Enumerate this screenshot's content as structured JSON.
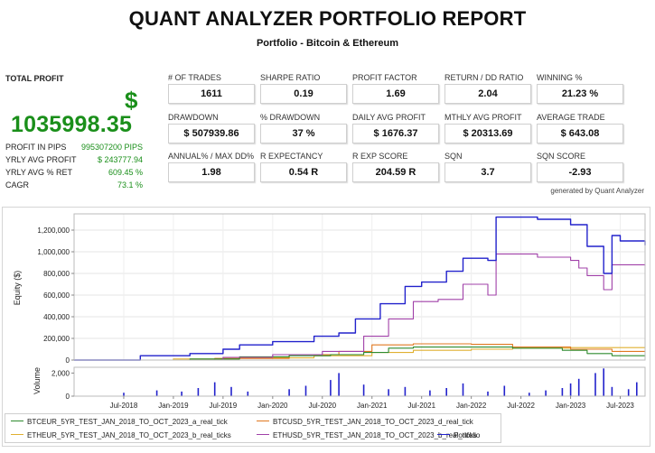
{
  "report": {
    "title": "QUANT ANALYZER PORTFOLIO REPORT",
    "subtitle": "Portfolio - Bitcoin & Ethereum",
    "generated_by": "generated by Quant Analyzer"
  },
  "total_profit": {
    "label": "TOTAL PROFIT",
    "currency_symbol": "$",
    "value": "1035998.35",
    "stats": [
      {
        "label": "PROFIT IN PIPS",
        "value": "995307200 PIPS"
      },
      {
        "label": "YRLY AVG PROFIT",
        "value": "$ 243777.94"
      },
      {
        "label": "YRLY AVG % RET",
        "value": "609.45 %"
      },
      {
        "label": "CAGR",
        "value": "73.1 %"
      }
    ]
  },
  "metrics": [
    {
      "label": "# OF TRADES",
      "value": "1611"
    },
    {
      "label": "SHARPE RATIO",
      "value": "0.19"
    },
    {
      "label": "PROFIT FACTOR",
      "value": "1.69"
    },
    {
      "label": "RETURN / DD RATIO",
      "value": "2.04"
    },
    {
      "label": "WINNING %",
      "value": "21.23 %"
    },
    {
      "label": "DRAWDOWN",
      "value": "$ 507939.86"
    },
    {
      "label": "% DRAWDOWN",
      "value": "37 %"
    },
    {
      "label": "DAILY AVG PROFIT",
      "value": "$ 1676.37"
    },
    {
      "label": "MTHLY AVG PROFIT",
      "value": "$ 20313.69"
    },
    {
      "label": "AVERAGE TRADE",
      "value": "$ 643.08"
    },
    {
      "label": "ANNUAL% / MAX DD%",
      "value": "1.98"
    },
    {
      "label": "R EXPECTANCY",
      "value": "0.54 R"
    },
    {
      "label": "R EXP SCORE",
      "value": "204.59 R"
    },
    {
      "label": "SQN",
      "value": "3.7"
    },
    {
      "label": "SQN SCORE",
      "value": "-2.93"
    }
  ],
  "colors": {
    "profit_green": "#1a8f1a",
    "btceur": "#2e8b2e",
    "btcusd": "#e07820",
    "etheur": "#e0b030",
    "ethusd": "#a040a8",
    "portfolio": "#2222cc",
    "volume": "#2222cc"
  },
  "chart_data": {
    "type": "line",
    "ylabel": "Equity ($)",
    "volume_label": "Volume",
    "ylim": [
      0,
      1350000
    ],
    "yticks": [
      "0",
      "200,000",
      "400,000",
      "600,000",
      "800,000",
      "1,000,000",
      "1,200,000"
    ],
    "volume_ylim": [
      0,
      2500
    ],
    "volume_yticks": [
      "0",
      "2,000"
    ],
    "xlim": [
      "2018-01",
      "2023-10"
    ],
    "xticks": [
      "Jul-2018",
      "Jan-2019",
      "Jul-2019",
      "Jan-2020",
      "Jul-2020",
      "Jan-2021",
      "Jul-2021",
      "Jan-2022",
      "Jul-2022",
      "Jan-2023",
      "Jul-2023"
    ],
    "series": [
      {
        "name": "BTCEUR_5YR_TEST_JAN_2018_TO_OCT_2023_a_real_tick",
        "color": "#2e8b2e",
        "points": [
          [
            "2018-01",
            0
          ],
          [
            "2019-03",
            10000
          ],
          [
            "2019-09",
            30000
          ],
          [
            "2020-03",
            40000
          ],
          [
            "2020-08",
            50000
          ],
          [
            "2020-12",
            70000
          ],
          [
            "2021-03",
            110000
          ],
          [
            "2021-06",
            120000
          ],
          [
            "2022-01",
            120000
          ],
          [
            "2022-06",
            110000
          ],
          [
            "2022-12",
            90000
          ],
          [
            "2023-03",
            60000
          ],
          [
            "2023-06",
            40000
          ],
          [
            "2023-10",
            35000
          ]
        ]
      },
      {
        "name": "BTCUSD_5YR_TEST_JAN_2018_TO_OCT_2023_d_real_tick",
        "color": "#e07820",
        "points": [
          [
            "2018-01",
            0
          ],
          [
            "2019-06",
            15000
          ],
          [
            "2020-03",
            50000
          ],
          [
            "2020-09",
            80000
          ],
          [
            "2021-01",
            140000
          ],
          [
            "2021-06",
            150000
          ],
          [
            "2022-01",
            145000
          ],
          [
            "2022-06",
            120000
          ],
          [
            "2023-01",
            100000
          ],
          [
            "2023-06",
            80000
          ],
          [
            "2023-10",
            75000
          ]
        ]
      },
      {
        "name": "ETHEUR_5YR_TEST_JAN_2018_TO_OCT_2023_b_real_ticks",
        "color": "#e0b030",
        "points": [
          [
            "2018-01",
            0
          ],
          [
            "2019-01",
            10000
          ],
          [
            "2019-09",
            20000
          ],
          [
            "2020-06",
            40000
          ],
          [
            "2021-01",
            70000
          ],
          [
            "2021-06",
            90000
          ],
          [
            "2022-01",
            100000
          ],
          [
            "2022-06",
            110000
          ],
          [
            "2023-01",
            115000
          ],
          [
            "2023-10",
            120000
          ]
        ]
      },
      {
        "name": "ETHUSD_5YR_TEST_JAN_2018_TO_OCT_2023_b_real_ticks",
        "color": "#a040a8",
        "points": [
          [
            "2018-01",
            0
          ],
          [
            "2019-07",
            25000
          ],
          [
            "2020-01",
            50000
          ],
          [
            "2020-07",
            80000
          ],
          [
            "2020-12",
            220000
          ],
          [
            "2021-03",
            380000
          ],
          [
            "2021-06",
            540000
          ],
          [
            "2021-09",
            560000
          ],
          [
            "2021-12",
            700000
          ],
          [
            "2022-03",
            600000
          ],
          [
            "2022-04",
            980000
          ],
          [
            "2022-09",
            950000
          ],
          [
            "2023-01",
            920000
          ],
          [
            "2023-02",
            850000
          ],
          [
            "2023-03",
            780000
          ],
          [
            "2023-05",
            650000
          ],
          [
            "2023-06",
            880000
          ],
          [
            "2023-10",
            870000
          ]
        ]
      },
      {
        "name": "Portfolio",
        "color": "#2222cc",
        "points": [
          [
            "2018-01",
            0
          ],
          [
            "2018-09",
            40000
          ],
          [
            "2019-03",
            60000
          ],
          [
            "2019-07",
            100000
          ],
          [
            "2019-09",
            140000
          ],
          [
            "2020-01",
            170000
          ],
          [
            "2020-06",
            220000
          ],
          [
            "2020-09",
            250000
          ],
          [
            "2020-11",
            380000
          ],
          [
            "2021-02",
            520000
          ],
          [
            "2021-05",
            680000
          ],
          [
            "2021-07",
            720000
          ],
          [
            "2021-10",
            820000
          ],
          [
            "2021-12",
            940000
          ],
          [
            "2022-03",
            920000
          ],
          [
            "2022-04",
            1320000
          ],
          [
            "2022-09",
            1300000
          ],
          [
            "2023-01",
            1250000
          ],
          [
            "2023-03",
            1050000
          ],
          [
            "2023-05",
            800000
          ],
          [
            "2023-06",
            1150000
          ],
          [
            "2023-07",
            1100000
          ],
          [
            "2023-09",
            1100000
          ],
          [
            "2023-10",
            1060000
          ]
        ]
      }
    ],
    "volume": {
      "name": "Volume",
      "points": [
        [
          "2018-07",
          300
        ],
        [
          "2018-11",
          500
        ],
        [
          "2019-02",
          400
        ],
        [
          "2019-04",
          700
        ],
        [
          "2019-06",
          1200
        ],
        [
          "2019-08",
          800
        ],
        [
          "2019-10",
          400
        ],
        [
          "2020-03",
          600
        ],
        [
          "2020-05",
          900
        ],
        [
          "2020-08",
          1400
        ],
        [
          "2020-09",
          2000
        ],
        [
          "2020-12",
          1000
        ],
        [
          "2021-03",
          600
        ],
        [
          "2021-05",
          800
        ],
        [
          "2021-08",
          500
        ],
        [
          "2021-10",
          700
        ],
        [
          "2021-12",
          1100
        ],
        [
          "2022-03",
          400
        ],
        [
          "2022-05",
          900
        ],
        [
          "2022-08",
          300
        ],
        [
          "2022-10",
          500
        ],
        [
          "2022-12",
          700
        ],
        [
          "2023-01",
          1100
        ],
        [
          "2023-02",
          1500
        ],
        [
          "2023-04",
          2000
        ],
        [
          "2023-05",
          2400
        ],
        [
          "2023-06",
          800
        ],
        [
          "2023-08",
          600
        ],
        [
          "2023-09",
          1200
        ]
      ]
    }
  }
}
